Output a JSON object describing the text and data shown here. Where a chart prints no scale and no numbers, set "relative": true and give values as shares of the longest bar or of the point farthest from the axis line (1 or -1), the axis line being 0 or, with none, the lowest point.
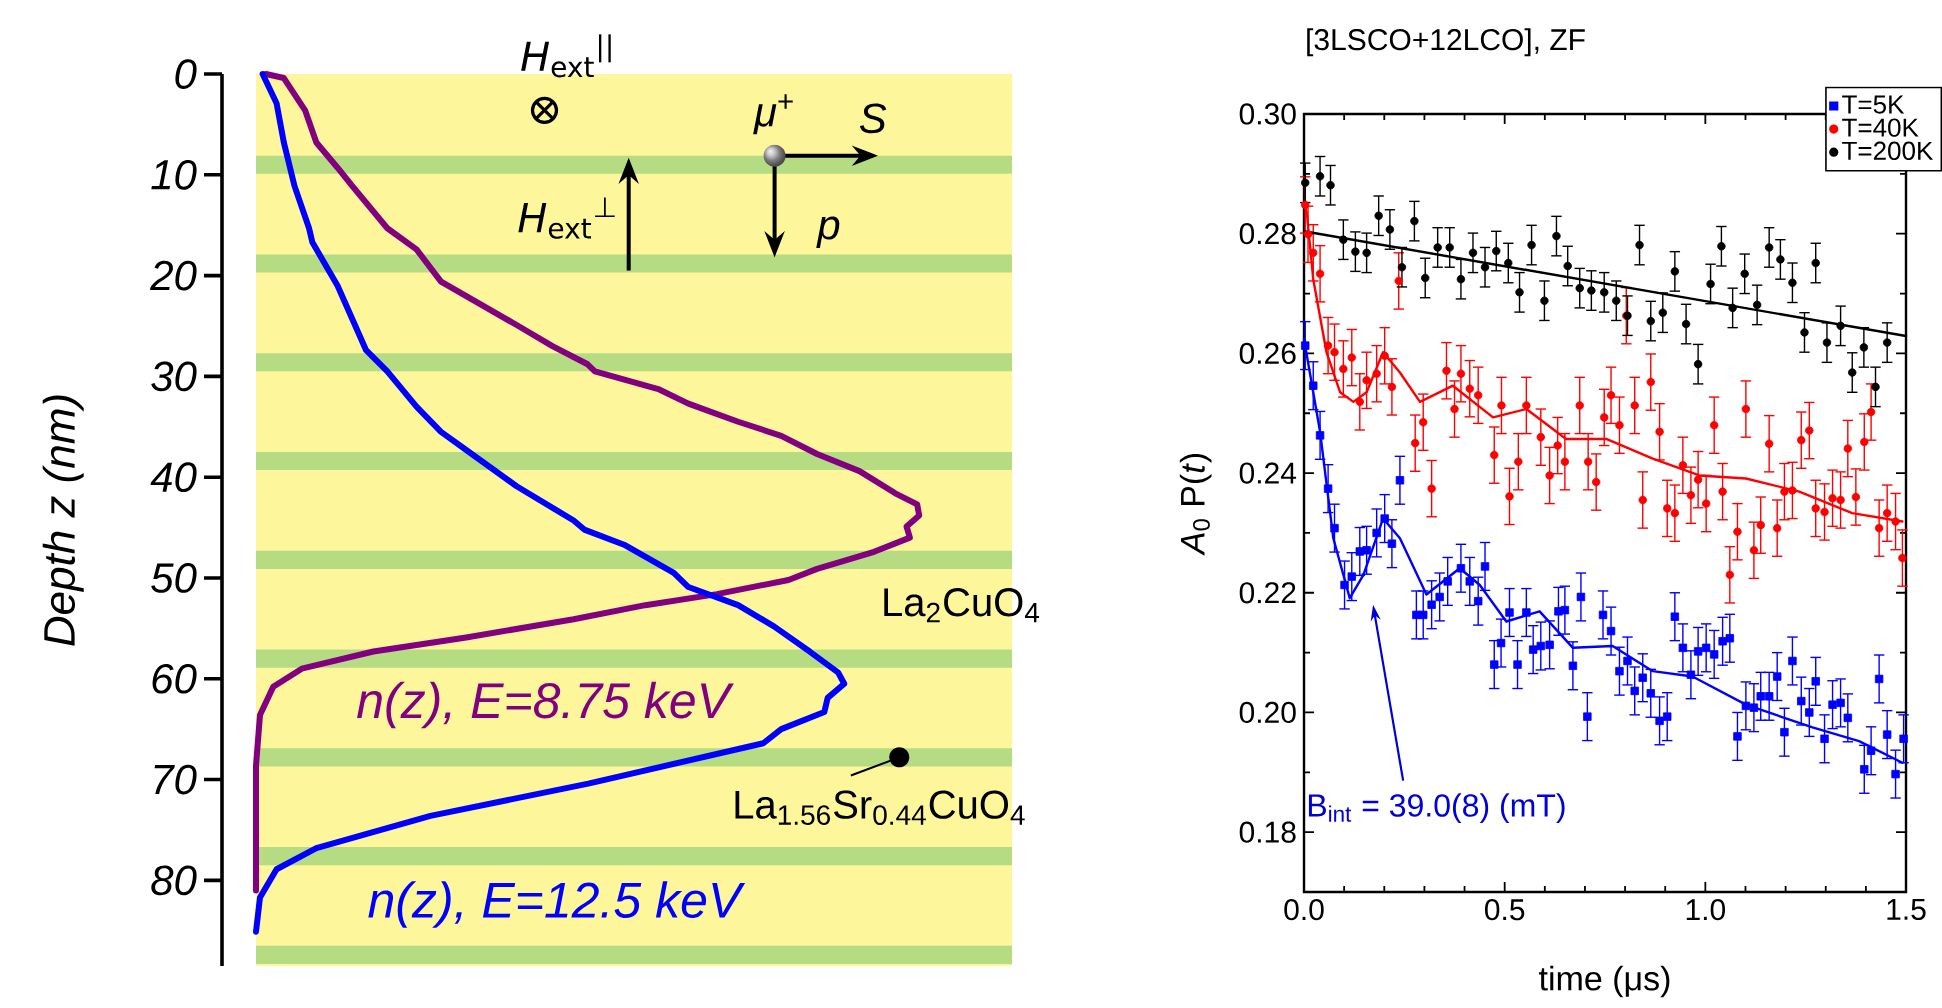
{
  "chart_data": [
    {
      "type": "line",
      "orientation": "horizontal",
      "relative": true,
      "ylabel": "Depth z (nm)",
      "ylim": [
        88.5,
        0
      ],
      "yticks": [
        0,
        10,
        20,
        30,
        40,
        50,
        60,
        70,
        80
      ],
      "bands": [
        {
          "axis": "y",
          "from": 0,
          "to": 88.5,
          "color": "#fdf69b"
        },
        {
          "axis": "y",
          "from": 8.1,
          "to": 9.9,
          "color": "#b5dc82"
        },
        {
          "axis": "y",
          "from": 17.9,
          "to": 19.7,
          "color": "#b5dc82"
        },
        {
          "axis": "y",
          "from": 27.7,
          "to": 29.5,
          "color": "#b5dc82"
        },
        {
          "axis": "y",
          "from": 37.5,
          "to": 39.3,
          "color": "#b5dc82"
        },
        {
          "axis": "y",
          "from": 47.3,
          "to": 49.1,
          "color": "#b5dc82"
        },
        {
          "axis": "y",
          "from": 57.1,
          "to": 58.9,
          "color": "#b5dc82"
        },
        {
          "axis": "y",
          "from": 66.9,
          "to": 68.7,
          "color": "#b5dc82"
        },
        {
          "axis": "y",
          "from": 76.7,
          "to": 78.5,
          "color": "#b5dc82"
        },
        {
          "axis": "y",
          "from": 86.5,
          "to": 88.3,
          "color": "#b5dc82"
        }
      ],
      "annotations": [
        "*H*$_{ext}$$^{||}$",
        "*H*$_{ext}$$^{⊥}$",
        "*μ*$^{+}$",
        "*S*",
        "*p*",
        "La$_{2}$CuO$_{4}$",
        "La$_{1.56}$Sr$_{0.44}$CuO$_{4}$"
      ],
      "series": [
        {
          "name": "n(z), E=8.75 keV",
          "color": "#800080",
          "values": [
            0.015,
            0.042,
            0.074,
            0.091,
            0.123,
            0.145,
            0.198,
            0.242,
            0.279,
            0.393,
            0.447,
            0.5,
            0.511,
            0.608,
            0.652,
            0.727,
            0.792,
            0.846,
            0.91,
            0.964,
            0.997,
            1.0,
            0.981,
            0.986,
            0.932,
            0.846,
            0.803,
            0.695,
            0.587,
            0.479,
            0.317,
            0.177,
            0.069,
            0.026,
            0.006,
            0.0,
            0.0
          ],
          "x": [
            0,
            0.4,
            3.6,
            6.8,
            9.3,
            11.1,
            15.3,
            17.4,
            20.6,
            24.9,
            27.0,
            28.8,
            29.5,
            31.3,
            32.7,
            34.5,
            35.9,
            37.7,
            39.4,
            41.6,
            42.7,
            43.8,
            44.9,
            46.0,
            47.4,
            49.1,
            50.2,
            51.6,
            52.7,
            54.1,
            55.9,
            57.3,
            59.0,
            60.8,
            63.6,
            68.6,
            81.0
          ]
        },
        {
          "name": "n(z), E=12.5 keV",
          "color": "#0000ff",
          "values": [
            0.01,
            0.031,
            0.042,
            0.058,
            0.08,
            0.085,
            0.123,
            0.166,
            0.198,
            0.242,
            0.279,
            0.317,
            0.393,
            0.479,
            0.495,
            0.555,
            0.63,
            0.652,
            0.727,
            0.781,
            0.835,
            0.878,
            0.887,
            0.862,
            0.857,
            0.792,
            0.765,
            0.501,
            0.263,
            0.091,
            0.031,
            0.006,
            0.0
          ],
          "x": [
            0,
            2.9,
            6.8,
            11.1,
            15.3,
            16.7,
            21.0,
            27.4,
            29.5,
            33.0,
            35.5,
            37.3,
            40.9,
            44.3,
            45.2,
            46.7,
            49.5,
            50.9,
            52.7,
            54.8,
            57.3,
            59.4,
            60.5,
            61.9,
            63.3,
            65.0,
            66.4,
            70.4,
            73.6,
            76.8,
            78.9,
            81.7,
            85.1
          ]
        }
      ]
    },
    {
      "type": "scatter",
      "title": "[3LSCO+12LCO], ZF",
      "xlabel": "time (μs)",
      "ylabel": "*A*$_{0}$ P(*t*)",
      "xlim": [
        0,
        1.5
      ],
      "xticks": [
        {
          "value": 0,
          "label": "0.0"
        },
        0.5,
        {
          "value": 1,
          "label": "1.0"
        },
        1.5
      ],
      "ylim": [
        0.17,
        0.3
      ],
      "yticks": [
        0.18,
        {
          "value": 0.2,
          "label": "0.20"
        },
        0.22,
        0.24,
        0.26,
        0.28,
        {
          "value": 0.3,
          "label": "0.30"
        }
      ],
      "legend": "top right",
      "annotations": [
        "B$_{int}$ = 39.0(8) (mT)"
      ],
      "series": [
        {
          "name": "T=5K",
          "color": "#0000ff",
          "marker": "square",
          "x": [
            0.003,
            0.023,
            0.04,
            0.06,
            0.076,
            0.101,
            0.119,
            0.139,
            0.156,
            0.181,
            0.201,
            0.219,
            0.239,
            0.28,
            0.297,
            0.318,
            0.338,
            0.358,
            0.391,
            0.413,
            0.434,
            0.451,
            0.474,
            0.491,
            0.512,
            0.532,
            0.554,
            0.571,
            0.59,
            0.612,
            0.634,
            0.65,
            0.67,
            0.69,
            0.706,
            0.745,
            0.765,
            0.786,
            0.806,
            0.824,
            0.844,
            0.864,
            0.886,
            0.905,
            0.924,
            0.944,
            0.964,
            0.982,
            1.002,
            1.022,
            1.043,
            1.061,
            1.08,
            1.101,
            1.121,
            1.138,
            1.159,
            1.179,
            1.197,
            1.217,
            1.239,
            1.259,
            1.275,
            1.297,
            1.317,
            1.337,
            1.355,
            1.396,
            1.413,
            1.433,
            1.453,
            1.474,
            1.494
          ],
          "values": [
            0.2613,
            0.2546,
            0.2463,
            0.2374,
            0.2308,
            0.2213,
            0.2227,
            0.2269,
            0.2271,
            0.23,
            0.2324,
            0.2282,
            0.2388,
            0.2163,
            0.2163,
            0.218,
            0.2193,
            0.2219,
            0.2241,
            0.2219,
            0.2186,
            0.2244,
            0.208,
            0.2116,
            0.2167,
            0.208,
            0.2167,
            0.2105,
            0.2111,
            0.2113,
            0.2169,
            0.2171,
            0.2078,
            0.2193,
            0.1993,
            0.2163,
            0.2136,
            0.2069,
            0.2086,
            0.2036,
            0.2058,
            0.2032,
            0.1986,
            0.1993,
            0.216,
            0.2108,
            0.2063,
            0.2102,
            0.2108,
            0.2097,
            0.2119,
            0.2124,
            0.196,
            0.2011,
            0.2008,
            0.2027,
            0.2027,
            0.206,
            0.1967,
            0.2086,
            0.2019,
            0.2,
            0.2052,
            0.1956,
            0.2013,
            0.2016,
            0.1991,
            0.1905,
            0.1936,
            0.2056,
            0.1963,
            0.1897,
            0.1956
          ],
          "errors": [
            0.004,
            0.004,
            0.004,
            0.004,
            0.004,
            0.004,
            0.004,
            0.004,
            0.004,
            0.004,
            0.004,
            0.004,
            0.004,
            0.004,
            0.004,
            0.004,
            0.004,
            0.004,
            0.004,
            0.004,
            0.004,
            0.004,
            0.004,
            0.004,
            0.004,
            0.004,
            0.004,
            0.004,
            0.004,
            0.004,
            0.004,
            0.004,
            0.004,
            0.004,
            0.004,
            0.004,
            0.004,
            0.004,
            0.004,
            0.004,
            0.004,
            0.004,
            0.004,
            0.004,
            0.004,
            0.004,
            0.004,
            0.004,
            0.004,
            0.004,
            0.004,
            0.004,
            0.004,
            0.004,
            0.004,
            0.004,
            0.004,
            0.004,
            0.004,
            0.004,
            0.004,
            0.004,
            0.004,
            0.004,
            0.004,
            0.004,
            0.004,
            0.004,
            0.004,
            0.004,
            0.004,
            0.004,
            0.004
          ]
        },
        {
          "name": "T=40K",
          "color": "#ff0000",
          "marker": "circle",
          "x": [
            0.003,
            0.01,
            0.023,
            0.04,
            0.06,
            0.076,
            0.098,
            0.119,
            0.139,
            0.156,
            0.181,
            0.201,
            0.219,
            0.236,
            0.277,
            0.297,
            0.318,
            0.355,
            0.375,
            0.391,
            0.413,
            0.434,
            0.474,
            0.492,
            0.512,
            0.534,
            0.554,
            0.59,
            0.612,
            0.632,
            0.65,
            0.687,
            0.708,
            0.728,
            0.748,
            0.765,
            0.786,
            0.803,
            0.824,
            0.844,
            0.864,
            0.886,
            0.905,
            0.924,
            0.944,
            0.964,
            0.982,
            1.002,
            1.022,
            1.043,
            1.061,
            1.08,
            1.101,
            1.121,
            1.138,
            1.159,
            1.179,
            1.197,
            1.217,
            1.239,
            1.259,
            1.275,
            1.297,
            1.317,
            1.337,
            1.355,
            1.375,
            1.396,
            1.413,
            1.433,
            1.453,
            1.474,
            1.491
          ],
          "values": [
            0.2848,
            0.2799,
            0.2768,
            0.2733,
            0.2613,
            0.2602,
            0.2574,
            0.2593,
            0.2519,
            0.2555,
            0.2566,
            0.2596,
            0.2544,
            0.2721,
            0.245,
            0.2485,
            0.2374,
            0.2571,
            0.2507,
            0.2566,
            0.2541,
            0.253,
            0.243,
            0.2513,
            0.2361,
            0.2419,
            0.2513,
            0.246,
            0.2396,
            0.2446,
            0.2419,
            0.2513,
            0.2419,
            0.2385,
            0.2493,
            0.253,
            0.248,
            0.2663,
            0.2513,
            0.2355,
            0.2552,
            0.2469,
            0.2341,
            0.2333,
            0.2413,
            0.2363,
            0.2389,
            0.2349,
            0.248,
            0.2369,
            0.223,
            0.2302,
            0.2507,
            0.2271,
            0.2313,
            0.2449,
            0.2308,
            0.2369,
            0.2371,
            0.2455,
            0.2471,
            0.2341,
            0.2335,
            0.2358,
            0.2355,
            0.2441,
            0.236,
            0.2452,
            0.2502,
            0.2308,
            0.2333,
            0.2319,
            0.2258
          ],
          "errors": [
            0.0047,
            0.0047,
            0.0047,
            0.0047,
            0.0047,
            0.0047,
            0.0047,
            0.0047,
            0.0047,
            0.0047,
            0.0047,
            0.0047,
            0.0047,
            0.0047,
            0.0047,
            0.0047,
            0.0047,
            0.0047,
            0.0047,
            0.0047,
            0.0047,
            0.0047,
            0.0047,
            0.0047,
            0.0047,
            0.0047,
            0.0047,
            0.0047,
            0.0047,
            0.0047,
            0.0047,
            0.0047,
            0.0047,
            0.0047,
            0.0047,
            0.0047,
            0.0047,
            0.0047,
            0.0047,
            0.0047,
            0.0047,
            0.0047,
            0.0047,
            0.0047,
            0.0047,
            0.0047,
            0.0047,
            0.0047,
            0.0047,
            0.0047,
            0.0047,
            0.0047,
            0.0047,
            0.0047,
            0.0047,
            0.0047,
            0.0047,
            0.0047,
            0.0047,
            0.0047,
            0.0047,
            0.0047,
            0.0047,
            0.0047,
            0.0047,
            0.0047,
            0.0047,
            0.0047,
            0.0047,
            0.0047,
            0.0047,
            0.0047,
            0.0047
          ]
        },
        {
          "name": "T=200K",
          "color": "#000000",
          "marker": "circle",
          "x": [
            0.003,
            0.04,
            0.066,
            0.098,
            0.128,
            0.156,
            0.186,
            0.214,
            0.244,
            0.275,
            0.302,
            0.333,
            0.363,
            0.391,
            0.421,
            0.451,
            0.479,
            0.509,
            0.537,
            0.567,
            0.599,
            0.629,
            0.657,
            0.687,
            0.716,
            0.748,
            0.778,
            0.806,
            0.836,
            0.864,
            0.894,
            0.924,
            0.952,
            0.982,
            1.013,
            1.04,
            1.068,
            1.098,
            1.129,
            1.159,
            1.187,
            1.217,
            1.247,
            1.275,
            1.303,
            1.337,
            1.366,
            1.395,
            1.424,
            1.453
          ],
          "values": [
            0.2885,
            0.2896,
            0.2881,
            0.279,
            0.277,
            0.2768,
            0.283,
            0.2807,
            0.2744,
            0.2821,
            0.2726,
            0.2777,
            0.2777,
            0.2724,
            0.2768,
            0.2744,
            0.2771,
            0.2751,
            0.2702,
            0.2781,
            0.2688,
            0.2796,
            0.2746,
            0.2709,
            0.2705,
            0.2702,
            0.2688,
            0.2663,
            0.2781,
            0.2654,
            0.2668,
            0.2737,
            0.2649,
            0.2582,
            0.2716,
            0.2779,
            0.2676,
            0.2733,
            0.2681,
            0.2777,
            0.2757,
            0.2718,
            0.2635,
            0.2751,
            0.2618,
            0.2646,
            0.2568,
            0.261,
            0.2544,
            0.2618
          ],
          "errors": [
            0.0033,
            0.0033,
            0.0033,
            0.0033,
            0.0033,
            0.0033,
            0.0033,
            0.0033,
            0.0033,
            0.0033,
            0.0033,
            0.0033,
            0.0033,
            0.0033,
            0.0033,
            0.0033,
            0.0033,
            0.0033,
            0.0033,
            0.0033,
            0.0033,
            0.0033,
            0.0033,
            0.0033,
            0.0033,
            0.0033,
            0.0033,
            0.0033,
            0.0033,
            0.0033,
            0.0033,
            0.0033,
            0.0033,
            0.0033,
            0.0033,
            0.0033,
            0.0033,
            0.0033,
            0.0033,
            0.0033,
            0.0033,
            0.0033,
            0.0033,
            0.0033,
            0.0033,
            0.0033,
            0.0033,
            0.0033,
            0.0033,
            0.0033
          ]
        },
        {
          "type": "line",
          "color": "#0000ff",
          "x": [
            0,
            0.04,
            0.073,
            0.114,
            0.148,
            0.197,
            0.239,
            0.305,
            0.388,
            0.438,
            0.504,
            0.587,
            0.67,
            0.769,
            0.869,
            0.968,
            1.101,
            1.267,
            1.383,
            1.491
          ],
          "values": [
            0.2624,
            0.2469,
            0.2291,
            0.2191,
            0.223,
            0.2324,
            0.2291,
            0.2197,
            0.2241,
            0.2213,
            0.2152,
            0.2169,
            0.2108,
            0.2111,
            0.2069,
            0.206,
            0.2013,
            0.1975,
            0.1952,
            0.1916
          ]
        },
        {
          "type": "line",
          "color": "#ff0000",
          "x": [
            0,
            0.007,
            0.023,
            0.056,
            0.09,
            0.123,
            0.156,
            0.197,
            0.239,
            0.289,
            0.371,
            0.471,
            0.554,
            0.653,
            0.753,
            0.869,
            0.985,
            1.101,
            1.234,
            1.366,
            1.491
          ],
          "values": [
            0.285,
            0.2835,
            0.2724,
            0.2602,
            0.2535,
            0.2519,
            0.2535,
            0.2602,
            0.2568,
            0.2519,
            0.2546,
            0.2493,
            0.2507,
            0.2457,
            0.2457,
            0.2424,
            0.2396,
            0.2391,
            0.2369,
            0.2333,
            0.2319
          ]
        },
        {
          "type": "line",
          "color": "#000000",
          "x": [
            0,
            1.5
          ],
          "values": [
            0.2804,
            0.2629
          ]
        }
      ]
    }
  ]
}
